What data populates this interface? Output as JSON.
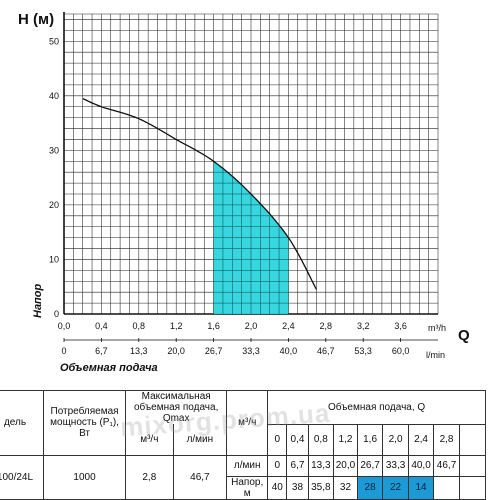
{
  "chart_data": {
    "type": "line",
    "title": "",
    "ylabel_top": "H (м)",
    "ylabel_side": "Напор",
    "xlabel": "Объемная подача",
    "x_axis_letter": "Q",
    "x_unit_primary": "m³/h",
    "x_unit_secondary": "l/min",
    "xlim": [
      0,
      4.0
    ],
    "ylim": [
      0,
      55
    ],
    "grid": true,
    "y_ticks": [
      "0",
      "10",
      "20",
      "30",
      "40",
      "50"
    ],
    "x_ticks_m3h": [
      "0,0",
      "0,4",
      "0,8",
      "1,2",
      "1,6",
      "2,0",
      "2,4",
      "2,8",
      "3,2",
      "3,6"
    ],
    "x_ticks_lmin": [
      "0",
      "6,7",
      "13,3",
      "20,0",
      "26,7",
      "33,3",
      "40,0",
      "46,7",
      "53,3",
      "60,0"
    ],
    "series": [
      {
        "x": [
          0.2,
          0.4,
          0.8,
          1.2,
          1.6,
          2.0,
          2.4,
          2.7
        ],
        "y": [
          39.5,
          38,
          35.8,
          32,
          28,
          22,
          14,
          4.5
        ]
      }
    ],
    "highlight_range_x": [
      1.6,
      2.4
    ],
    "colors": {
      "curve": "#111111",
      "highlight": "#27d4dc",
      "grid": "#222222"
    }
  },
  "table": {
    "header": {
      "model": "дель",
      "power": "Потребляемая мощность (P₁), Вт",
      "qmax": "Максимальная объемная подача, Qmax",
      "qmax_unit_m3h": "м³/ч",
      "qmax_unit_lmin": "л/мин",
      "flow": "Объемная подача, Q",
      "flow_unit_m3h": "м³/ч",
      "flow_unit_lmin": "л/мин",
      "head_label": "Напор, м"
    },
    "flow_m3h": [
      "0",
      "0,4",
      "0,8",
      "1,2",
      "1,6",
      "2,0",
      "2,4",
      "2,8"
    ],
    "flow_lmin": [
      "0",
      "6,7",
      "13,3",
      "20,0",
      "26,7",
      "33,3",
      "40,0",
      "46,7"
    ],
    "row": {
      "model": "100/24L",
      "power": "1000",
      "qmax_m3h": "2,8",
      "qmax_lmin": "46,7",
      "heads": [
        "40",
        "38",
        "35,8",
        "32",
        "28",
        "22",
        "14",
        ""
      ]
    },
    "highlight_color": "#1b9ad6"
  },
  "watermark": "mixorg.prom.ua"
}
